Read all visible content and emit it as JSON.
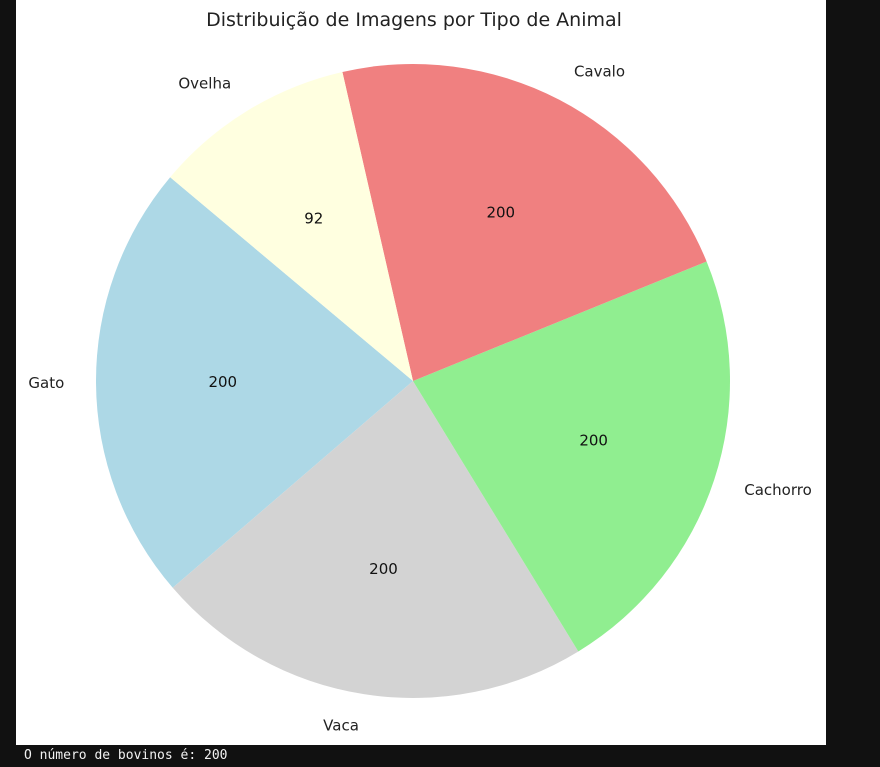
{
  "chart_data": {
    "type": "pie",
    "title": "Distribuição de Imagens por Tipo de Animal",
    "categories": [
      "Gato",
      "Vaca",
      "Cachorro",
      "Cavalo",
      "Ovelha"
    ],
    "values": [
      200,
      200,
      200,
      200,
      92
    ],
    "value_labels": [
      "200",
      "200",
      "200",
      "200",
      "92"
    ],
    "colors": [
      "#add8e6",
      "#d3d3d3",
      "#90ee90",
      "#f08080",
      "#ffffe0"
    ]
  },
  "console": {
    "output_text": "O número de bovinos é: 200"
  }
}
